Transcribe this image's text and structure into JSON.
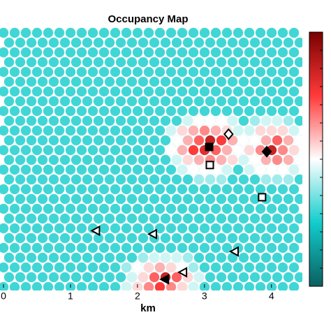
{
  "chart_data": {
    "type": "occupancy-map",
    "title": "Occupancy Map",
    "x_label": "km",
    "xlim": [
      0,
      4.43
    ],
    "xticks": [
      0,
      1,
      2,
      3,
      4
    ],
    "ylim": [
      0,
      3.875
    ],
    "clim": [
      0,
      1
    ],
    "colormap": [
      "#0b5f5f",
      "#12cccc",
      "#ffffff",
      "#ff3a3a",
      "#7a0000"
    ],
    "grid": [
      [
        0.3,
        0.3,
        0.3,
        0.3,
        0.3,
        0.3,
        0.3,
        0.3,
        0.3,
        0.3,
        0.3,
        0.3,
        0.3,
        0.3,
        0.3,
        0.3,
        0.3,
        0.3,
        0.3,
        0.3,
        0.3,
        0.3,
        0.3,
        0.3,
        0.3,
        0.3,
        0.3
      ],
      [
        0.3,
        0.3,
        0.3,
        0.3,
        0.3,
        0.3,
        0.3,
        0.3,
        0.3,
        0.3,
        0.3,
        0.3,
        0.3,
        0.3,
        0.3,
        0.3,
        0.3,
        0.3,
        0.3,
        0.3,
        0.3,
        0.3,
        0.3,
        0.3,
        0.3,
        0.3,
        0.3
      ],
      [
        0.3,
        0.3,
        0.3,
        0.3,
        0.3,
        0.3,
        0.3,
        0.3,
        0.3,
        0.3,
        0.3,
        0.3,
        0.3,
        0.3,
        0.3,
        0.3,
        0.3,
        0.3,
        0.3,
        0.3,
        0.3,
        0.3,
        0.3,
        0.3,
        0.3,
        0.3,
        0.3
      ],
      [
        0.3,
        0.3,
        0.3,
        0.3,
        0.3,
        0.3,
        0.3,
        0.3,
        0.3,
        0.3,
        0.3,
        0.3,
        0.3,
        0.3,
        0.3,
        0.3,
        0.3,
        0.3,
        0.3,
        0.3,
        0.3,
        0.3,
        0.3,
        0.3,
        0.3,
        0.3,
        0.3
      ],
      [
        0.3,
        0.3,
        0.3,
        0.3,
        0.3,
        0.3,
        0.3,
        0.3,
        0.3,
        0.3,
        0.3,
        0.3,
        0.3,
        0.3,
        0.3,
        0.3,
        0.3,
        0.3,
        0.3,
        0.3,
        0.3,
        0.3,
        0.3,
        0.3,
        0.3,
        0.3,
        0.3
      ],
      [
        0.3,
        0.3,
        0.3,
        0.3,
        0.3,
        0.3,
        0.3,
        0.3,
        0.3,
        0.3,
        0.3,
        0.3,
        0.3,
        0.3,
        0.3,
        0.3,
        0.3,
        0.3,
        0.3,
        0.3,
        0.3,
        0.3,
        0.3,
        0.3,
        0.3,
        0.3,
        0.3
      ],
      [
        0.3,
        0.3,
        0.3,
        0.3,
        0.3,
        0.3,
        0.3,
        0.3,
        0.3,
        0.3,
        0.3,
        0.3,
        0.3,
        0.3,
        0.3,
        0.3,
        0.3,
        0.3,
        0.3,
        0.3,
        0.3,
        0.3,
        0.3,
        0.3,
        0.3,
        0.3,
        0.3
      ],
      [
        0.3,
        0.3,
        0.3,
        0.3,
        0.3,
        0.3,
        0.3,
        0.3,
        0.3,
        0.3,
        0.3,
        0.3,
        0.3,
        0.3,
        0.3,
        0.3,
        0.3,
        0.3,
        0.3,
        0.3,
        0.3,
        0.3,
        0.3,
        0.3,
        0.3,
        0.3,
        0.3
      ],
      [
        0.3,
        0.3,
        0.3,
        0.3,
        0.3,
        0.3,
        0.3,
        0.3,
        0.3,
        0.3,
        0.3,
        0.3,
        0.3,
        0.3,
        0.3,
        0.3,
        0.3,
        0.3,
        0.3,
        0.3,
        0.3,
        0.3,
        0.3,
        0.3,
        0.3,
        0.3,
        0.3
      ],
      [
        0.3,
        0.3,
        0.3,
        0.3,
        0.3,
        0.3,
        0.3,
        0.3,
        0.3,
        0.3,
        0.3,
        0.3,
        0.3,
        0.3,
        0.3,
        0.3,
        0.45,
        0.5,
        0.5,
        0.5,
        0.45,
        0.3,
        0.4,
        0.45,
        0.45,
        0.4,
        0.3
      ],
      [
        0.3,
        0.3,
        0.3,
        0.3,
        0.3,
        0.3,
        0.3,
        0.3,
        0.3,
        0.3,
        0.3,
        0.3,
        0.3,
        0.3,
        0.3,
        0.45,
        0.55,
        0.6,
        0.65,
        0.6,
        0.55,
        0.45,
        0.45,
        0.55,
        0.55,
        0.55,
        0.45
      ],
      [
        0.3,
        0.3,
        0.3,
        0.3,
        0.3,
        0.3,
        0.3,
        0.3,
        0.3,
        0.3,
        0.3,
        0.3,
        0.3,
        0.3,
        0.3,
        0.5,
        0.6,
        0.7,
        0.85,
        0.75,
        0.6,
        0.5,
        0.5,
        0.6,
        0.7,
        0.6,
        0.5
      ],
      [
        0.3,
        0.3,
        0.3,
        0.3,
        0.3,
        0.3,
        0.3,
        0.3,
        0.3,
        0.3,
        0.3,
        0.3,
        0.3,
        0.3,
        0.3,
        0.5,
        0.6,
        0.75,
        0.8,
        0.7,
        0.6,
        0.5,
        0.55,
        0.65,
        0.85,
        0.65,
        0.55
      ],
      [
        0.3,
        0.3,
        0.3,
        0.3,
        0.3,
        0.3,
        0.3,
        0.3,
        0.3,
        0.3,
        0.3,
        0.3,
        0.3,
        0.3,
        0.3,
        0.45,
        0.55,
        0.6,
        0.65,
        0.6,
        0.55,
        0.45,
        0.5,
        0.6,
        0.65,
        0.6,
        0.5
      ],
      [
        0.3,
        0.3,
        0.3,
        0.3,
        0.3,
        0.3,
        0.3,
        0.3,
        0.3,
        0.3,
        0.3,
        0.3,
        0.3,
        0.3,
        0.3,
        0.3,
        0.45,
        0.5,
        0.5,
        0.5,
        0.45,
        0.3,
        0.45,
        0.5,
        0.5,
        0.5,
        0.45
      ],
      [
        0.3,
        0.3,
        0.3,
        0.3,
        0.3,
        0.3,
        0.3,
        0.3,
        0.3,
        0.3,
        0.3,
        0.3,
        0.3,
        0.3,
        0.3,
        0.3,
        0.3,
        0.4,
        0.4,
        0.4,
        0.3,
        0.3,
        0.3,
        0.4,
        0.4,
        0.4,
        0.3
      ],
      [
        0.3,
        0.3,
        0.3,
        0.3,
        0.3,
        0.3,
        0.3,
        0.3,
        0.3,
        0.3,
        0.3,
        0.3,
        0.3,
        0.3,
        0.3,
        0.3,
        0.3,
        0.3,
        0.3,
        0.3,
        0.3,
        0.3,
        0.3,
        0.3,
        0.3,
        0.3,
        0.3
      ],
      [
        0.3,
        0.3,
        0.3,
        0.3,
        0.3,
        0.3,
        0.3,
        0.3,
        0.3,
        0.3,
        0.3,
        0.3,
        0.3,
        0.3,
        0.3,
        0.3,
        0.3,
        0.3,
        0.3,
        0.3,
        0.3,
        0.3,
        0.3,
        0.3,
        0.3,
        0.3,
        0.3
      ],
      [
        0.3,
        0.3,
        0.3,
        0.3,
        0.3,
        0.3,
        0.3,
        0.3,
        0.3,
        0.3,
        0.3,
        0.3,
        0.3,
        0.3,
        0.3,
        0.3,
        0.3,
        0.3,
        0.3,
        0.3,
        0.3,
        0.3,
        0.3,
        0.3,
        0.3,
        0.3,
        0.3
      ],
      [
        0.3,
        0.3,
        0.3,
        0.3,
        0.3,
        0.3,
        0.3,
        0.3,
        0.3,
        0.3,
        0.3,
        0.3,
        0.3,
        0.3,
        0.3,
        0.3,
        0.3,
        0.3,
        0.3,
        0.3,
        0.3,
        0.3,
        0.3,
        0.3,
        0.3,
        0.3,
        0.3
      ],
      [
        0.3,
        0.3,
        0.3,
        0.3,
        0.3,
        0.3,
        0.3,
        0.3,
        0.3,
        0.3,
        0.3,
        0.3,
        0.3,
        0.3,
        0.3,
        0.3,
        0.3,
        0.3,
        0.3,
        0.3,
        0.3,
        0.3,
        0.3,
        0.3,
        0.3,
        0.3,
        0.3
      ],
      [
        0.3,
        0.3,
        0.3,
        0.3,
        0.3,
        0.3,
        0.3,
        0.3,
        0.3,
        0.3,
        0.3,
        0.3,
        0.3,
        0.3,
        0.3,
        0.3,
        0.3,
        0.3,
        0.3,
        0.3,
        0.3,
        0.3,
        0.3,
        0.3,
        0.3,
        0.3,
        0.3
      ],
      [
        0.3,
        0.3,
        0.3,
        0.3,
        0.3,
        0.3,
        0.3,
        0.3,
        0.3,
        0.3,
        0.3,
        0.3,
        0.3,
        0.3,
        0.3,
        0.3,
        0.3,
        0.3,
        0.3,
        0.3,
        0.3,
        0.3,
        0.3,
        0.3,
        0.3,
        0.3,
        0.3
      ],
      [
        0.3,
        0.3,
        0.3,
        0.3,
        0.3,
        0.3,
        0.3,
        0.3,
        0.3,
        0.3,
        0.3,
        0.3,
        0.4,
        0.45,
        0.45,
        0.45,
        0.4,
        0.3,
        0.3,
        0.3,
        0.3,
        0.3,
        0.3,
        0.3,
        0.3,
        0.3,
        0.3
      ],
      [
        0.3,
        0.3,
        0.3,
        0.3,
        0.3,
        0.3,
        0.3,
        0.3,
        0.3,
        0.3,
        0.3,
        0.4,
        0.5,
        0.55,
        0.6,
        0.55,
        0.5,
        0.4,
        0.3,
        0.3,
        0.3,
        0.3,
        0.3,
        0.3,
        0.3,
        0.3,
        0.3
      ],
      [
        0.3,
        0.3,
        0.3,
        0.3,
        0.3,
        0.3,
        0.3,
        0.3,
        0.3,
        0.3,
        0.3,
        0.45,
        0.55,
        0.7,
        0.85,
        0.7,
        0.55,
        0.45,
        0.3,
        0.3,
        0.3,
        0.3,
        0.3,
        0.3,
        0.3,
        0.3,
        0.3
      ],
      [
        0.3,
        0.3,
        0.3,
        0.3,
        0.3,
        0.3,
        0.3,
        0.3,
        0.3,
        0.3,
        0.3,
        0.45,
        0.55,
        0.65,
        0.75,
        0.65,
        0.55,
        0.45,
        0.3,
        0.3,
        0.3,
        0.3,
        0.3,
        0.3,
        0.3,
        0.3,
        0.3
      ]
    ],
    "markers": [
      {
        "shape": "square",
        "filled": true,
        "x": 3.07,
        "y": 2.1
      },
      {
        "shape": "diamond",
        "filled": false,
        "x": 3.36,
        "y": 2.29
      },
      {
        "shape": "diamond",
        "filled": true,
        "x": 3.93,
        "y": 2.03
      },
      {
        "shape": "square",
        "filled": false,
        "x": 3.08,
        "y": 1.83
      },
      {
        "shape": "square",
        "filled": false,
        "x": 3.86,
        "y": 1.35
      },
      {
        "shape": "triangle-left",
        "filled": false,
        "x": 1.38,
        "y": 0.85
      },
      {
        "shape": "triangle-left",
        "filled": false,
        "x": 2.23,
        "y": 0.8
      },
      {
        "shape": "triangle-left",
        "filled": false,
        "x": 3.45,
        "y": 0.54
      },
      {
        "shape": "triangle-left",
        "filled": false,
        "x": 2.68,
        "y": 0.23
      },
      {
        "shape": "triangle-left",
        "filled": true,
        "x": 2.41,
        "y": 0.125
      }
    ]
  }
}
